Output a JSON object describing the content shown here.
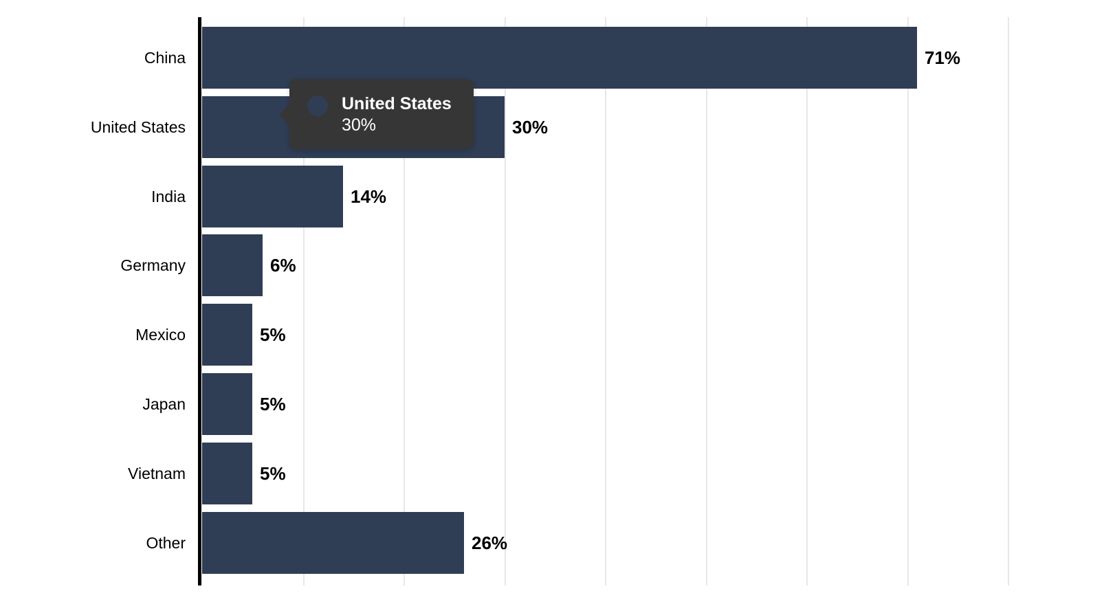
{
  "chart_data": {
    "type": "bar",
    "orientation": "horizontal",
    "title": "",
    "xlabel": "",
    "ylabel": "",
    "categories": [
      "China",
      "United States",
      "India",
      "Germany",
      "Mexico",
      "Japan",
      "Vietnam",
      "Other"
    ],
    "values": [
      71,
      30,
      14,
      6,
      5,
      5,
      5,
      26
    ],
    "value_labels": [
      "71%",
      "30%",
      "14%",
      "6%",
      "5%",
      "5%",
      "5%",
      "26%"
    ],
    "unit": "%",
    "xlim": [
      0,
      85
    ],
    "gridlines_percent": [
      10,
      20,
      30,
      40,
      50,
      60,
      70,
      80
    ],
    "grid": "vertical",
    "legend": "none",
    "colors": {
      "bar": "#2f3d55",
      "axis_line": "#000000",
      "gridline": "#e7e7e7",
      "label_text": "#000000",
      "background": "#ffffff"
    }
  },
  "tooltip": {
    "title": "United States",
    "value": "30%",
    "colors": {
      "background": "#363636",
      "text": "#ffffff",
      "marker": "#2f3d55"
    }
  }
}
